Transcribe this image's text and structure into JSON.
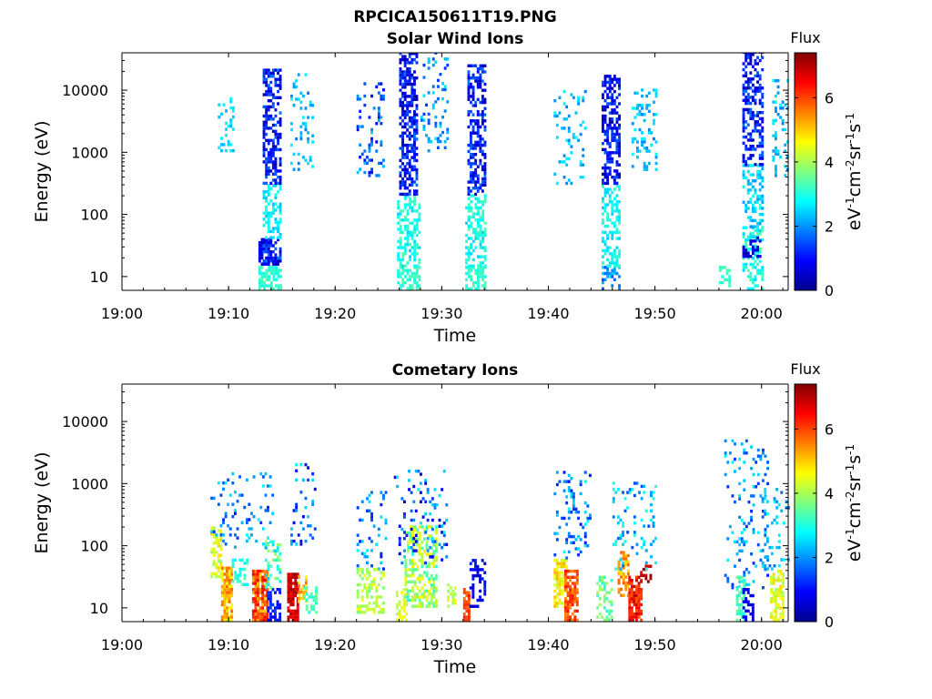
{
  "figure": {
    "title": "RPCICA150611T19.PNG"
  },
  "colors": {
    "axis": "#000000",
    "background": "#ffffff",
    "colormap": "jet"
  },
  "chart_data": [
    {
      "type": "heatmap",
      "title": "Solar Wind Ions",
      "xlabel": "Time",
      "ylabel": "Energy (eV)",
      "x_ticks": [
        "19:00",
        "19:10",
        "19:20",
        "19:30",
        "19:40",
        "19:50",
        "20:00"
      ],
      "x_tick_minutes": [
        0,
        10,
        20,
        30,
        40,
        50,
        60
      ],
      "xlim_minutes": [
        0,
        62.5
      ],
      "y_ticks": [
        "10",
        "100",
        "1000",
        "10000"
      ],
      "y_tick_values": [
        10,
        100,
        1000,
        10000
      ],
      "ylim": [
        6,
        40000
      ],
      "yscale": "log",
      "colorbar": {
        "title": "Flux",
        "label": "eV-1cm-2sr-1s-1",
        "ticks": [
          "0",
          "2",
          "4",
          "6"
        ],
        "range": [
          0,
          7.4
        ]
      },
      "bursts": [
        {
          "start": 9.0,
          "end": 10.5,
          "emin": 800,
          "emax": 8000,
          "cmin": 2.2,
          "cmax": 2.8,
          "density": 0.25
        },
        {
          "start": 12.8,
          "end": 13.2,
          "emin": 15,
          "emax": 40,
          "cmin": 0.3,
          "cmax": 1.0,
          "density": 0.8
        },
        {
          "start": 12.8,
          "end": 14.8,
          "emin": 6,
          "emax": 14,
          "cmin": 2.8,
          "cmax": 3.4,
          "density": 0.7
        },
        {
          "start": 13.2,
          "end": 14.8,
          "emin": 15,
          "emax": 40,
          "cmin": 0.4,
          "cmax": 1.8,
          "density": 0.7
        },
        {
          "start": 13.2,
          "end": 14.8,
          "emin": 40,
          "emax": 300,
          "cmin": 2.3,
          "cmax": 3.0,
          "density": 0.45
        },
        {
          "start": 13.2,
          "end": 14.8,
          "emin": 300,
          "emax": 20000,
          "cmin": 0.2,
          "cmax": 1.8,
          "density": 0.55
        },
        {
          "start": 15.8,
          "end": 17.8,
          "emin": 500,
          "emax": 18000,
          "cmin": 1.8,
          "cmax": 2.8,
          "density": 0.18
        },
        {
          "start": 22.0,
          "end": 24.5,
          "emin": 400,
          "emax": 12000,
          "cmin": 0.8,
          "cmax": 2.5,
          "density": 0.18
        },
        {
          "start": 25.8,
          "end": 27.8,
          "emin": 6,
          "emax": 14,
          "cmin": 2.8,
          "cmax": 3.4,
          "density": 0.6
        },
        {
          "start": 25.8,
          "end": 27.8,
          "emin": 14,
          "emax": 200,
          "cmin": 2.4,
          "cmax": 3.4,
          "density": 0.45
        },
        {
          "start": 26.0,
          "end": 27.6,
          "emin": 200,
          "emax": 40000,
          "cmin": 0.2,
          "cmax": 1.8,
          "density": 0.55
        },
        {
          "start": 28.0,
          "end": 30.5,
          "emin": 1000,
          "emax": 40000,
          "cmin": 1.2,
          "cmax": 2.6,
          "density": 0.15
        },
        {
          "start": 32.2,
          "end": 34.0,
          "emin": 6,
          "emax": 14,
          "cmin": 2.8,
          "cmax": 3.4,
          "density": 0.6
        },
        {
          "start": 32.2,
          "end": 34.0,
          "emin": 14,
          "emax": 200,
          "cmin": 2.4,
          "cmax": 3.4,
          "density": 0.45
        },
        {
          "start": 32.4,
          "end": 34.0,
          "emin": 200,
          "emax": 25000,
          "cmin": 0.2,
          "cmax": 1.8,
          "density": 0.55
        },
        {
          "start": 40.5,
          "end": 43.5,
          "emin": 300,
          "emax": 10000,
          "cmin": 1.8,
          "cmax": 2.8,
          "density": 0.15
        },
        {
          "start": 45.0,
          "end": 46.6,
          "emin": 6,
          "emax": 14,
          "cmin": 1.4,
          "cmax": 2.6,
          "density": 0.5
        },
        {
          "start": 45.0,
          "end": 46.6,
          "emin": 14,
          "emax": 300,
          "cmin": 2.4,
          "cmax": 3.2,
          "density": 0.45
        },
        {
          "start": 45.0,
          "end": 46.6,
          "emin": 300,
          "emax": 16000,
          "cmin": 0.2,
          "cmax": 1.6,
          "density": 0.55
        },
        {
          "start": 47.8,
          "end": 50.0,
          "emin": 500,
          "emax": 10000,
          "cmin": 1.8,
          "cmax": 2.8,
          "density": 0.18
        },
        {
          "start": 56.0,
          "end": 57.0,
          "emin": 6,
          "emax": 14,
          "cmin": 2.8,
          "cmax": 3.4,
          "density": 0.4
        },
        {
          "start": 58.2,
          "end": 60.0,
          "emin": 6,
          "emax": 60,
          "cmin": 2.4,
          "cmax": 3.4,
          "density": 0.45
        },
        {
          "start": 58.2,
          "end": 59.8,
          "emin": 20,
          "emax": 40,
          "cmin": 0.3,
          "cmax": 1.0,
          "density": 0.5
        },
        {
          "start": 58.2,
          "end": 60.0,
          "emin": 60,
          "emax": 600,
          "cmin": 2.0,
          "cmax": 3.0,
          "density": 0.4
        },
        {
          "start": 58.2,
          "end": 60.0,
          "emin": 600,
          "emax": 40000,
          "cmin": 0.2,
          "cmax": 1.8,
          "density": 0.5
        },
        {
          "start": 61.0,
          "end": 62.5,
          "emin": 400,
          "emax": 15000,
          "cmin": 1.8,
          "cmax": 2.8,
          "density": 0.25
        }
      ]
    },
    {
      "type": "heatmap",
      "title": "Cometary Ions",
      "xlabel": "Time",
      "ylabel": "Energy (eV)",
      "x_ticks": [
        "19:00",
        "19:10",
        "19:20",
        "19:30",
        "19:40",
        "19:50",
        "20:00"
      ],
      "x_tick_minutes": [
        0,
        10,
        20,
        30,
        40,
        50,
        60
      ],
      "xlim_minutes": [
        0,
        62.5
      ],
      "y_ticks": [
        "10",
        "100",
        "1000",
        "10000"
      ],
      "y_tick_values": [
        10,
        100,
        1000,
        10000
      ],
      "ylim": [
        6,
        40000
      ],
      "yscale": "log",
      "colorbar": {
        "title": "Flux",
        "label": "eV-1cm-2sr-1s-1",
        "ticks": [
          "0",
          "2",
          "4",
          "6"
        ],
        "range": [
          0,
          7.4
        ]
      },
      "bursts": [
        {
          "start": 8.3,
          "end": 9.3,
          "emin": 30,
          "emax": 200,
          "cmin": 3.8,
          "cmax": 5.0,
          "density": 0.55
        },
        {
          "start": 9.3,
          "end": 10.3,
          "emin": 6,
          "emax": 50,
          "cmin": 4.5,
          "cmax": 5.8,
          "density": 0.75
        },
        {
          "start": 8.3,
          "end": 14.2,
          "emin": 80,
          "emax": 1500,
          "cmin": 1.0,
          "cmax": 2.8,
          "density": 0.12
        },
        {
          "start": 10.3,
          "end": 11.8,
          "emin": 20,
          "emax": 60,
          "cmin": 2.6,
          "cmax": 3.4,
          "density": 0.45
        },
        {
          "start": 12.2,
          "end": 13.6,
          "emin": 6,
          "emax": 40,
          "cmin": 5.0,
          "cmax": 6.6,
          "density": 0.8
        },
        {
          "start": 13.6,
          "end": 14.8,
          "emin": 6,
          "emax": 20,
          "cmin": 0.6,
          "cmax": 1.4,
          "density": 0.55
        },
        {
          "start": 13.4,
          "end": 14.8,
          "emin": 20,
          "emax": 120,
          "cmin": 2.2,
          "cmax": 4.0,
          "density": 0.35
        },
        {
          "start": 15.5,
          "end": 16.5,
          "emin": 6,
          "emax": 35,
          "cmin": 6.4,
          "cmax": 7.3,
          "density": 0.85
        },
        {
          "start": 16.5,
          "end": 17.2,
          "emin": 12,
          "emax": 30,
          "cmin": 4.5,
          "cmax": 5.6,
          "density": 0.6
        },
        {
          "start": 15.8,
          "end": 18.0,
          "emin": 100,
          "emax": 2000,
          "cmin": 0.6,
          "cmax": 2.8,
          "density": 0.15
        },
        {
          "start": 17.0,
          "end": 18.2,
          "emin": 8,
          "emax": 20,
          "cmin": 3.0,
          "cmax": 3.6,
          "density": 0.4
        },
        {
          "start": 22.0,
          "end": 24.5,
          "emin": 8,
          "emax": 40,
          "cmin": 3.6,
          "cmax": 4.6,
          "density": 0.45
        },
        {
          "start": 22.0,
          "end": 24.8,
          "emin": 40,
          "emax": 800,
          "cmin": 1.0,
          "cmax": 2.8,
          "density": 0.12
        },
        {
          "start": 25.7,
          "end": 26.6,
          "emin": 6,
          "emax": 20,
          "cmin": 4.0,
          "cmax": 4.8,
          "density": 0.55
        },
        {
          "start": 26.5,
          "end": 29.5,
          "emin": 10,
          "emax": 200,
          "cmin": 3.0,
          "cmax": 4.8,
          "density": 0.5
        },
        {
          "start": 25.5,
          "end": 30.5,
          "emin": 50,
          "emax": 1500,
          "cmin": 0.4,
          "cmax": 2.8,
          "density": 0.13
        },
        {
          "start": 30.5,
          "end": 31.2,
          "emin": 10,
          "emax": 30,
          "cmin": 3.8,
          "cmax": 4.6,
          "density": 0.45
        },
        {
          "start": 32.0,
          "end": 32.6,
          "emin": 6,
          "emax": 20,
          "cmin": 5.6,
          "cmax": 6.4,
          "density": 0.75
        },
        {
          "start": 32.6,
          "end": 34.0,
          "emin": 10,
          "emax": 60,
          "cmin": 0.4,
          "cmax": 1.2,
          "density": 0.35
        },
        {
          "start": 40.5,
          "end": 41.8,
          "emin": 10,
          "emax": 60,
          "cmin": 4.2,
          "cmax": 5.2,
          "density": 0.6
        },
        {
          "start": 41.5,
          "end": 42.6,
          "emin": 6,
          "emax": 40,
          "cmin": 5.4,
          "cmax": 6.4,
          "density": 0.7
        },
        {
          "start": 40.5,
          "end": 44.0,
          "emin": 60,
          "emax": 1500,
          "cmin": 1.0,
          "cmax": 2.8,
          "density": 0.12
        },
        {
          "start": 44.5,
          "end": 46.0,
          "emin": 6,
          "emax": 30,
          "cmin": 3.0,
          "cmax": 4.0,
          "density": 0.45
        },
        {
          "start": 46.5,
          "end": 47.4,
          "emin": 15,
          "emax": 80,
          "cmin": 4.8,
          "cmax": 5.8,
          "density": 0.55
        },
        {
          "start": 47.5,
          "end": 48.6,
          "emin": 6,
          "emax": 30,
          "cmin": 5.8,
          "cmax": 7.0,
          "density": 0.8
        },
        {
          "start": 48.6,
          "end": 49.6,
          "emin": 25,
          "emax": 45,
          "cmin": 6.6,
          "cmax": 7.4,
          "density": 0.45
        },
        {
          "start": 46.0,
          "end": 50.0,
          "emin": 40,
          "emax": 1000,
          "cmin": 1.4,
          "cmax": 3.2,
          "density": 0.14
        },
        {
          "start": 56.5,
          "end": 60.5,
          "emin": 20,
          "emax": 5000,
          "cmin": 1.2,
          "cmax": 2.8,
          "density": 0.14
        },
        {
          "start": 57.6,
          "end": 58.4,
          "emin": 6,
          "emax": 30,
          "cmin": 3.0,
          "cmax": 3.6,
          "density": 0.5
        },
        {
          "start": 58.2,
          "end": 59.2,
          "emin": 6,
          "emax": 20,
          "cmin": 0.5,
          "cmax": 1.0,
          "density": 0.4
        },
        {
          "start": 60.8,
          "end": 62.0,
          "emin": 6,
          "emax": 40,
          "cmin": 4.0,
          "cmax": 5.0,
          "density": 0.55
        },
        {
          "start": 60.0,
          "end": 62.5,
          "emin": 40,
          "emax": 800,
          "cmin": 1.6,
          "cmax": 2.8,
          "density": 0.18
        }
      ]
    }
  ]
}
